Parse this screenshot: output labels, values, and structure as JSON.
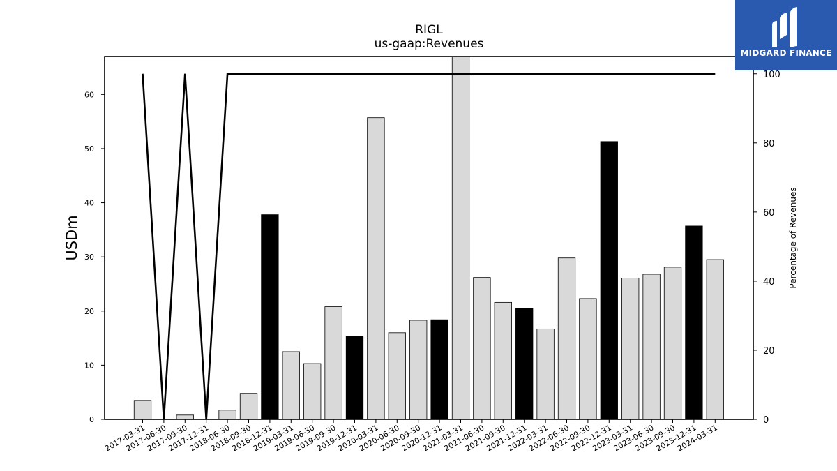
{
  "logo": {
    "text": "MIDGARD FINANCE",
    "background": "#2a59b0"
  },
  "chart_data": {
    "type": "bar",
    "title": "RIGL",
    "subtitle": "us-gaap:Revenues",
    "ylabel": "USDm",
    "y2label": "Percentage of Revenues",
    "ylim": [
      0,
      67
    ],
    "y2lim": [
      0,
      105
    ],
    "yticks": [
      0,
      10,
      20,
      30,
      40,
      50,
      60
    ],
    "y2ticks": [
      0,
      20,
      40,
      60,
      80,
      100
    ],
    "categories": [
      "2017-03-31",
      "2017-06-30",
      "2017-09-30",
      "2017-12-31",
      "2018-06-30",
      "2018-09-30",
      "2018-12-31",
      "2019-03-31",
      "2019-06-30",
      "2019-09-30",
      "2019-12-31",
      "2020-03-31",
      "2020-06-30",
      "2020-09-30",
      "2020-12-31",
      "2021-03-31",
      "2021-06-30",
      "2021-09-30",
      "2021-12-31",
      "2022-03-31",
      "2022-06-30",
      "2022-09-30",
      "2022-12-31",
      "2023-03-31",
      "2023-06-30",
      "2023-09-30",
      "2023-12-31",
      "2024-03-31"
    ],
    "values": [
      3.5,
      0,
      0.8,
      0,
      1.7,
      4.8,
      37.8,
      12.5,
      10.3,
      20.8,
      15.4,
      55.7,
      16.0,
      18.3,
      18.4,
      67.5,
      26.2,
      21.6,
      20.5,
      16.7,
      29.8,
      22.3,
      51.3,
      26.1,
      26.8,
      28.1,
      35.7,
      29.5
    ],
    "highlight": [
      false,
      false,
      false,
      false,
      false,
      false,
      true,
      false,
      false,
      false,
      true,
      false,
      false,
      false,
      true,
      false,
      false,
      false,
      true,
      false,
      false,
      false,
      true,
      false,
      false,
      false,
      true,
      false
    ],
    "line_values": [
      100,
      0,
      100,
      0,
      100,
      100,
      100,
      100,
      100,
      100,
      100,
      100,
      100,
      100,
      100,
      100,
      100,
      100,
      100,
      100,
      100,
      100,
      100,
      100,
      100,
      100,
      100,
      100
    ],
    "colors": {
      "bar": "#d9d9d9",
      "bar_highlight": "#000000",
      "line": "#000000",
      "axis": "#000000"
    }
  }
}
